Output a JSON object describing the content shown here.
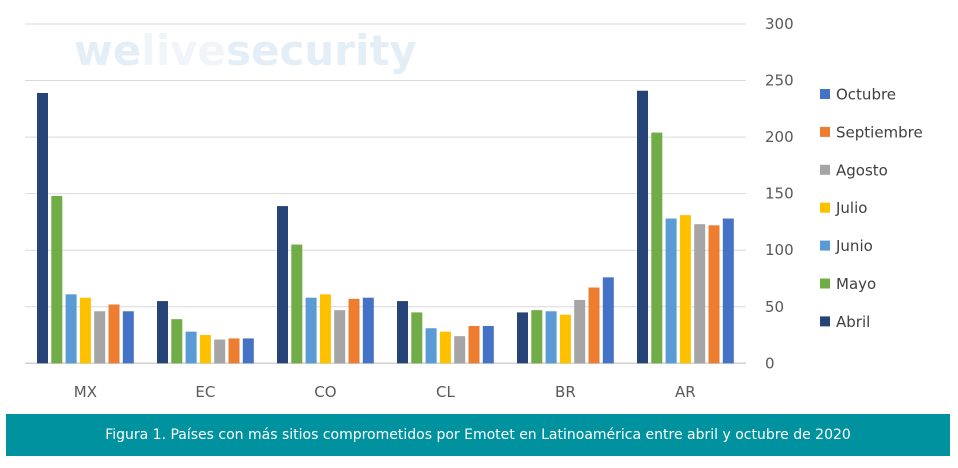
{
  "watermark": {
    "part1": "we",
    "part2": "live",
    "part3": "security"
  },
  "caption": "Figura 1. Países con más sitios comprometidos por Emotet en Latinoamérica entre abril y octubre de 2020",
  "chart_data": {
    "type": "bar",
    "title": "",
    "xlabel": "",
    "ylabel": "",
    "ylim": [
      0,
      300
    ],
    "yticks": [
      0,
      50,
      100,
      150,
      200,
      250,
      300
    ],
    "y_axis_side": "right",
    "grid": true,
    "legend_position": "right",
    "categories": [
      "MX",
      "EC",
      "CO",
      "CL",
      "BR",
      "AR"
    ],
    "series": [
      {
        "name": "Abril",
        "color": "#264478",
        "values": [
          239,
          55,
          139,
          55,
          45,
          241
        ]
      },
      {
        "name": "Mayo",
        "color": "#70ad47",
        "values": [
          148,
          39,
          105,
          45,
          47,
          204
        ]
      },
      {
        "name": "Junio",
        "color": "#5b9bd5",
        "values": [
          61,
          28,
          58,
          31,
          46,
          128
        ]
      },
      {
        "name": "Julio",
        "color": "#ffc000",
        "values": [
          58,
          25,
          61,
          28,
          43,
          131
        ]
      },
      {
        "name": "Agosto",
        "color": "#a5a5a5",
        "values": [
          46,
          21,
          47,
          24,
          56,
          123
        ]
      },
      {
        "name": "Septiembre",
        "color": "#ed7d31",
        "values": [
          52,
          22,
          57,
          33,
          67,
          122
        ]
      },
      {
        "name": "Octubre",
        "color": "#4472c4",
        "values": [
          46,
          22,
          58,
          33,
          76,
          128
        ]
      }
    ],
    "legend_order": [
      "Octubre",
      "Septiembre",
      "Agosto",
      "Julio",
      "Junio",
      "Mayo",
      "Abril"
    ]
  }
}
